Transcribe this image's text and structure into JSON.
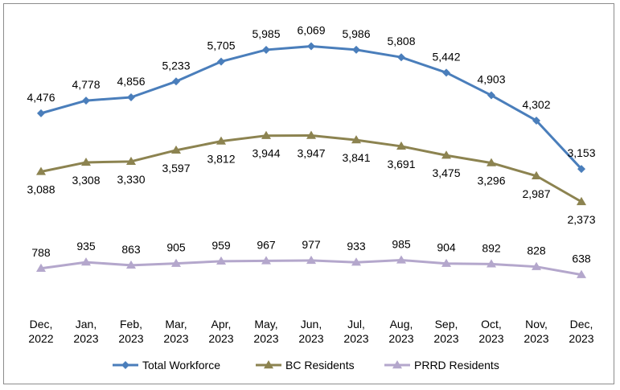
{
  "chart_data": {
    "type": "line",
    "title": "",
    "xlabel": "",
    "ylabel": "",
    "categories": [
      [
        "Dec,",
        "2022"
      ],
      [
        "Jan,",
        "2023"
      ],
      [
        "Feb,",
        "2023"
      ],
      [
        "Mar,",
        "2023"
      ],
      [
        "Apr,",
        "2023"
      ],
      [
        "May,",
        "2023"
      ],
      [
        "Jun,",
        "2023"
      ],
      [
        "Jul,",
        "2023"
      ],
      [
        "Aug,",
        "2023"
      ],
      [
        "Sep,",
        "2023"
      ],
      [
        "Oct,",
        "2023"
      ],
      [
        "Nov,",
        "2023"
      ],
      [
        "Dec,",
        "2023"
      ]
    ],
    "ylim": [
      0,
      6500
    ],
    "grid": false,
    "legend_position": "bottom",
    "series": [
      {
        "name": "Total Workforce",
        "color": "#4a7ebb",
        "marker": "diamond",
        "label_placement": "above",
        "values": [
          4476,
          4778,
          4856,
          5233,
          5705,
          5985,
          6069,
          5986,
          5808,
          5442,
          4903,
          4302,
          3153
        ],
        "labels": [
          "4,476",
          "4,778",
          "4,856",
          "5,233",
          "5,705",
          "5,985",
          "6,069",
          "5,986",
          "5,808",
          "5,442",
          "4,903",
          "4,302",
          "3,153"
        ]
      },
      {
        "name": "BC Residents",
        "color": "#8c8350",
        "marker": "triangle",
        "label_placement": "below",
        "values": [
          3088,
          3308,
          3330,
          3597,
          3812,
          3944,
          3947,
          3841,
          3691,
          3475,
          3296,
          2987,
          2373
        ],
        "labels": [
          "3,088",
          "3,308",
          "3,330",
          "3,597",
          "3,812",
          "3,944",
          "3,947",
          "3,841",
          "3,691",
          "3,475",
          "3,296",
          "2,987",
          "2,373"
        ]
      },
      {
        "name": "PRRD Residents",
        "color": "#b4a7cc",
        "marker": "triangle",
        "label_placement": "above",
        "values": [
          788,
          935,
          863,
          905,
          959,
          967,
          977,
          933,
          985,
          904,
          892,
          828,
          638
        ],
        "labels": [
          "788",
          "935",
          "863",
          "905",
          "959",
          "967",
          "977",
          "933",
          "985",
          "904",
          "892",
          "828",
          "638"
        ]
      }
    ]
  }
}
